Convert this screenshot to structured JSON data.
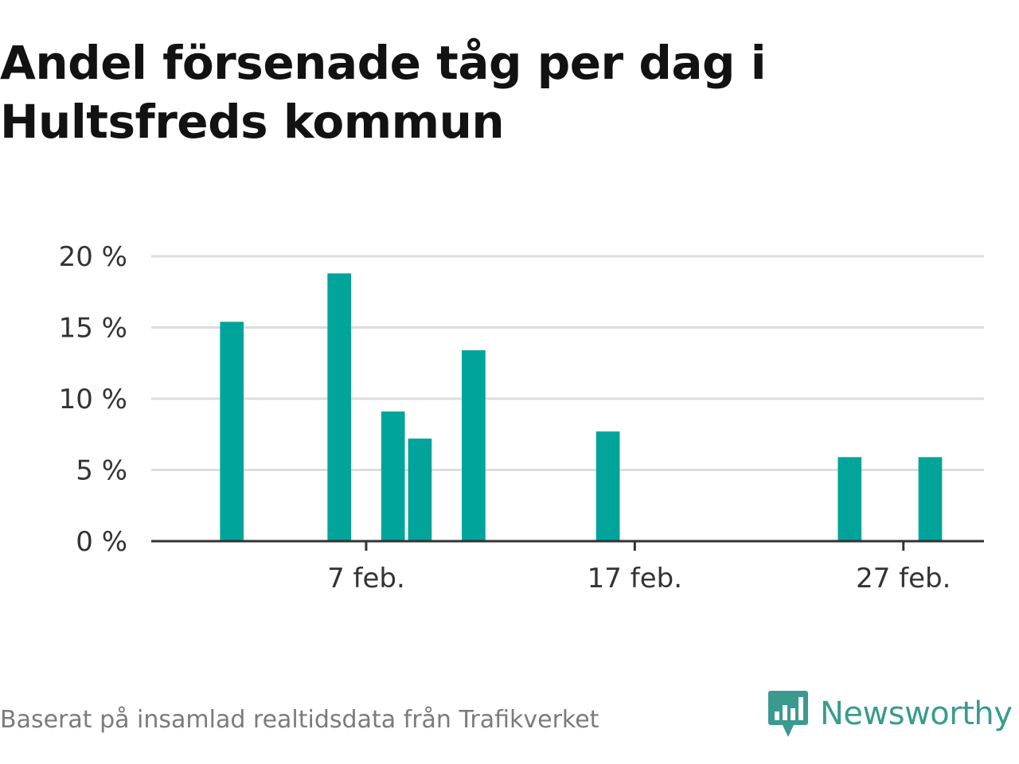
{
  "title": "Andel försenade tåg per dag i Hultsfreds kommun",
  "footer": {
    "source": "Baserat på insamlad realtidsdata från Trafikverket",
    "brand": "Newsworthy",
    "brand_icon": "newsworthy-logo-icon"
  },
  "colors": {
    "bar": "#00a49a",
    "grid": "#dddddd",
    "axis": "#333333",
    "brand": "#3a9a91"
  },
  "chart_data": {
    "type": "bar",
    "xlim": [
      "2025-01-30",
      "2025-03-02"
    ],
    "ylim": [
      0,
      20
    ],
    "yticks": [
      0,
      5,
      10,
      15,
      20
    ],
    "ytick_labels": [
      "0 %",
      "5 %",
      "10 %",
      "15 %",
      "20 %"
    ],
    "xticks": [
      "2025-02-07",
      "2025-02-17",
      "2025-02-27"
    ],
    "xtick_labels": [
      "7 feb.",
      "17 feb.",
      "27 feb."
    ],
    "grid": true,
    "x": [
      "2025-02-02",
      "2025-02-06",
      "2025-02-08",
      "2025-02-09",
      "2025-02-11",
      "2025-02-16",
      "2025-02-25",
      "2025-02-28"
    ],
    "values": [
      15.4,
      18.8,
      9.1,
      7.2,
      13.4,
      7.7,
      5.9,
      5.9
    ]
  }
}
